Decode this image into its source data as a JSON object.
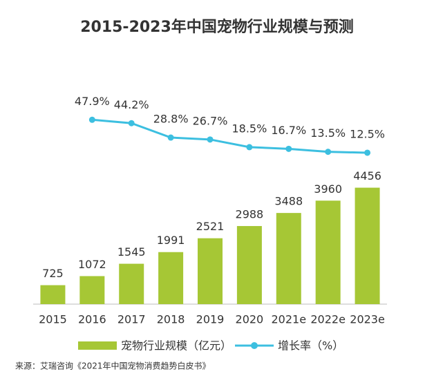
{
  "chart_data": {
    "type": "bar_line",
    "title": "2015-2023年中国宠物行业规模与预测",
    "categories": [
      "2015",
      "2016",
      "2017",
      "2018",
      "2019",
      "2020",
      "2021e",
      "2022e",
      "2023e"
    ],
    "series": [
      {
        "name": "宠物行业规模（亿元）",
        "type": "bar",
        "color": "#a6c735",
        "values": [
          725,
          1072,
          1545,
          1991,
          2521,
          2988,
          3488,
          3960,
          4456
        ]
      },
      {
        "name": "增长率（%）",
        "type": "line",
        "axis": "y2",
        "color": "#3cbfe0",
        "values": [
          null,
          47.9,
          44.2,
          28.8,
          26.7,
          18.5,
          16.7,
          13.5,
          12.5
        ],
        "value_labels": [
          null,
          "47.9%",
          "44.2%",
          "28.8%",
          "26.7%",
          "18.5%",
          "16.7%",
          "13.5%",
          "12.5%"
        ]
      }
    ],
    "ylim": [
      0,
      8200
    ],
    "y2lim": [
      -150,
      80
    ],
    "source": "来源：艾瑞咨询《2021年中国宠物消费趋势白皮书》"
  }
}
